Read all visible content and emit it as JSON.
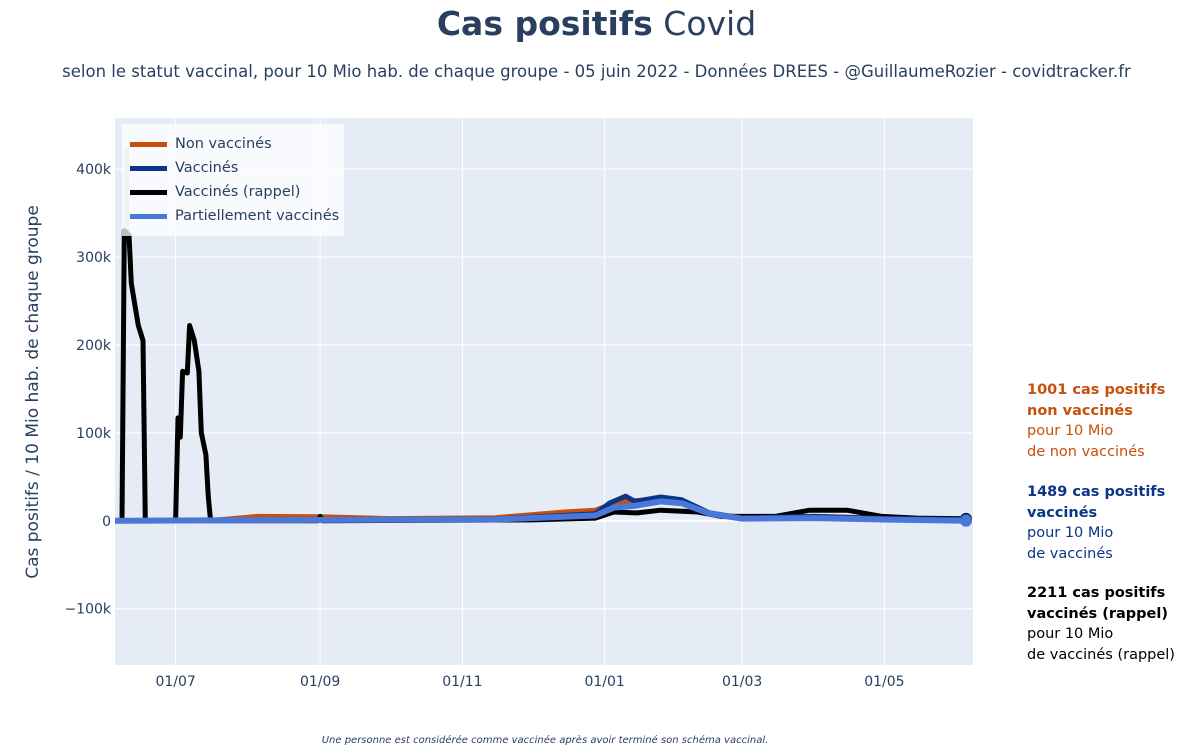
{
  "title_bold": "Cas positifs",
  "title_rest": "Covid",
  "subtitle": "selon le statut vaccinal, pour 10 Mio hab. de chaque groupe - 05 juin 2022 - Données DREES - @GuillaumeRozier - covidtracker.fr",
  "footnote": "Une personne est considérée comme vaccinée après avoir terminé son schéma vaccinal.",
  "chart_data": {
    "type": "line",
    "ylabel": "Cas positifs / 10 Mio hab. de chaque groupe",
    "xlim": [
      "2021-06-05",
      "2022-06-08"
    ],
    "ylim": [
      -164000,
      458000
    ],
    "grid": true,
    "legend_position": "top-left",
    "x_ticks": [
      {
        "date": "2021-07-01",
        "label": "01/07"
      },
      {
        "date": "2021-09-01",
        "label": "01/09"
      },
      {
        "date": "2021-11-01",
        "label": "01/11"
      },
      {
        "date": "2022-01-01",
        "label": "01/01"
      },
      {
        "date": "2022-03-01",
        "label": "01/03"
      },
      {
        "date": "2022-05-01",
        "label": "01/05"
      }
    ],
    "y_ticks": [
      {
        "value": -100000,
        "label": "−100k"
      },
      {
        "value": 0,
        "label": "0"
      },
      {
        "value": 100000,
        "label": "100k"
      },
      {
        "value": 200000,
        "label": "200k"
      },
      {
        "value": 300000,
        "label": "300k"
      },
      {
        "value": 400000,
        "label": "400k"
      }
    ],
    "series": [
      {
        "name": "Non vaccinés",
        "color": "#c8500a",
        "width": 5,
        "points": [
          [
            "2021-06-05",
            0
          ],
          [
            "2021-07-15",
            0
          ],
          [
            "2021-08-05",
            5000
          ],
          [
            "2021-09-01",
            4500
          ],
          [
            "2021-10-01",
            2500
          ],
          [
            "2021-11-15",
            3500
          ],
          [
            "2021-12-15",
            10000
          ],
          [
            "2021-12-28",
            12000
          ],
          [
            "2022-01-05",
            20000
          ],
          [
            "2022-01-10",
            22000
          ],
          [
            "2022-01-25",
            25000
          ],
          [
            "2022-02-05",
            20000
          ],
          [
            "2022-02-15",
            8000
          ],
          [
            "2022-03-01",
            4000
          ],
          [
            "2022-04-01",
            5000
          ],
          [
            "2022-05-01",
            3000
          ],
          [
            "2022-06-05",
            1001
          ]
        ]
      },
      {
        "name": "Vaccinés (rappel)",
        "color": "#000000",
        "width": 5,
        "points": [
          [
            "2021-06-05",
            0
          ],
          [
            "2021-06-08",
            0
          ],
          [
            "2021-06-09",
            330000
          ],
          [
            "2021-06-11",
            325000
          ],
          [
            "2021-06-12",
            270000
          ],
          [
            "2021-06-15",
            222000
          ],
          [
            "2021-06-17",
            205000
          ],
          [
            "2021-06-18",
            0
          ],
          [
            "2021-07-01",
            0
          ],
          [
            "2021-07-02",
            117000
          ],
          [
            "2021-07-03",
            95000
          ],
          [
            "2021-07-04",
            170000
          ],
          [
            "2021-07-06",
            168000
          ],
          [
            "2021-07-07",
            222000
          ],
          [
            "2021-07-09",
            205000
          ],
          [
            "2021-07-11",
            170000
          ],
          [
            "2021-07-12",
            100000
          ],
          [
            "2021-07-14",
            75000
          ],
          [
            "2021-07-15",
            27000
          ],
          [
            "2021-07-16",
            0
          ],
          [
            "2021-08-31",
            0
          ],
          [
            "2021-09-01",
            5000
          ],
          [
            "2021-09-02",
            0
          ],
          [
            "2021-12-01",
            1000
          ],
          [
            "2021-12-28",
            3000
          ],
          [
            "2022-01-05",
            10000
          ],
          [
            "2022-01-15",
            9000
          ],
          [
            "2022-01-25",
            12000
          ],
          [
            "2022-02-10",
            10000
          ],
          [
            "2022-02-20",
            5000
          ],
          [
            "2022-03-15",
            5000
          ],
          [
            "2022-03-30",
            12000
          ],
          [
            "2022-04-15",
            12000
          ],
          [
            "2022-04-30",
            5000
          ],
          [
            "2022-05-15",
            3000
          ],
          [
            "2022-06-05",
            2211
          ]
        ]
      },
      {
        "name": "Vaccinés",
        "color": "#0b3588",
        "width": 5,
        "points": [
          [
            "2021-06-05",
            0
          ],
          [
            "2021-09-01",
            1500
          ],
          [
            "2021-11-15",
            2000
          ],
          [
            "2021-12-28",
            8000
          ],
          [
            "2022-01-03",
            20000
          ],
          [
            "2022-01-10",
            28000
          ],
          [
            "2022-01-14",
            22000
          ],
          [
            "2022-01-25",
            27000
          ],
          [
            "2022-02-03",
            24000
          ],
          [
            "2022-02-15",
            9000
          ],
          [
            "2022-03-01",
            3000
          ],
          [
            "2022-04-01",
            5000
          ],
          [
            "2022-05-01",
            2500
          ],
          [
            "2022-06-05",
            1489
          ]
        ]
      },
      {
        "name": "Partiellement vaccinés",
        "color": "#4a78d8",
        "width": 6,
        "points": [
          [
            "2021-06-05",
            0
          ],
          [
            "2021-09-01",
            1000
          ],
          [
            "2021-11-15",
            1500
          ],
          [
            "2021-12-28",
            6000
          ],
          [
            "2022-01-05",
            15000
          ],
          [
            "2022-01-14",
            17000
          ],
          [
            "2022-01-25",
            22000
          ],
          [
            "2022-02-03",
            20000
          ],
          [
            "2022-02-15",
            8000
          ],
          [
            "2022-03-01",
            2500
          ],
          [
            "2022-04-01",
            3000
          ],
          [
            "2022-05-01",
            1500
          ],
          [
            "2022-06-05",
            0
          ]
        ]
      }
    ]
  },
  "legend": [
    {
      "label": "Non vaccinés",
      "color": "#c8500a"
    },
    {
      "label": "Vaccinés",
      "color": "#0b3588"
    },
    {
      "label": "Vaccinés (rappel)",
      "color": "#000000"
    },
    {
      "label": "Partiellement vaccinés",
      "color": "#4a78d8"
    }
  ],
  "annotations": [
    {
      "bold1": "1001 cas positifs",
      "bold2": "non vaccinés",
      "line1": "pour 10 Mio",
      "line2": "de non vaccinés",
      "color": "#c8500a"
    },
    {
      "bold1": "1489 cas positifs",
      "bold2": "vaccinés",
      "line1": "pour 10 Mio",
      "line2": "de vaccinés",
      "color": "#0b3588"
    },
    {
      "bold1": "2211 cas positifs",
      "bold2": "vaccinés (rappel)",
      "line1": "pour 10 Mio",
      "line2": "de vaccinés (rappel)",
      "color": "#000000"
    }
  ]
}
